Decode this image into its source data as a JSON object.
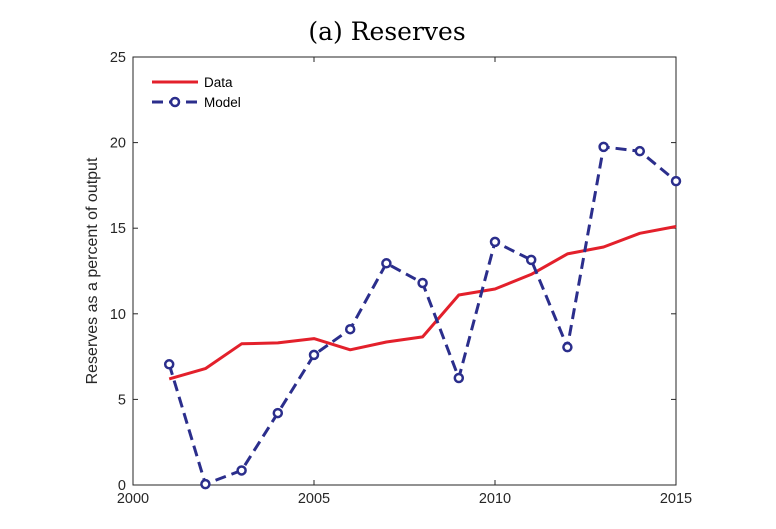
{
  "chart_data": {
    "type": "line",
    "title": "(a) Reserves",
    "xlabel": "",
    "ylabel": "Reserves as a percent of output",
    "xlim": [
      2000,
      2015
    ],
    "ylim": [
      0,
      25
    ],
    "xticks": [
      2000,
      2005,
      2010,
      2015
    ],
    "yticks": [
      0,
      5,
      10,
      15,
      20,
      25
    ],
    "grid": false,
    "legend_position": "top-left",
    "series": [
      {
        "name": "Data",
        "color": "#e3202b",
        "style": "solid",
        "marker": "none",
        "x": [
          2001,
          2002,
          2003,
          2004,
          2005,
          2006,
          2007,
          2008,
          2009,
          2010,
          2011,
          2012,
          2013,
          2014,
          2015
        ],
        "y": [
          6.2,
          6.8,
          8.25,
          8.3,
          8.55,
          7.9,
          8.35,
          8.65,
          11.1,
          11.45,
          12.3,
          13.5,
          13.9,
          14.7,
          15.1
        ]
      },
      {
        "name": "Model",
        "color": "#2b2e8c",
        "style": "dashed",
        "marker": "circle",
        "x": [
          2001,
          2002,
          2003,
          2004,
          2005,
          2006,
          2007,
          2008,
          2009,
          2010,
          2011,
          2012,
          2013,
          2014,
          2015
        ],
        "y": [
          7.05,
          0.05,
          0.85,
          4.2,
          7.6,
          9.1,
          12.95,
          11.8,
          6.25,
          14.2,
          13.15,
          8.05,
          19.75,
          19.5,
          17.75
        ]
      }
    ]
  }
}
